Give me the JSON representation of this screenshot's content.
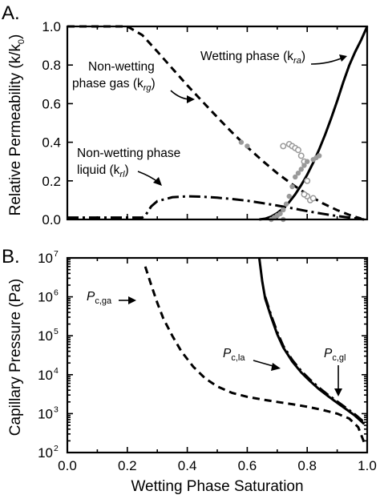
{
  "chart_data": [
    {
      "panel": "A.",
      "type": "line",
      "xlabel": "",
      "ylabel": "Relative Permeability (k/k",
      "ylabel_sub": "0",
      "ylabel_end": ")",
      "xlim": [
        0,
        1
      ],
      "ylim": [
        0,
        1
      ],
      "yticks": [
        "0.0",
        "0.2",
        "0.4",
        "0.6",
        "0.8",
        "1.0"
      ],
      "series": [
        {
          "name": "Wetting phase (k",
          "name_sub": "ra",
          "name_end": ")",
          "style": "solid",
          "x": [
            0.64,
            0.66,
            0.68,
            0.7,
            0.72,
            0.74,
            0.76,
            0.78,
            0.8,
            0.82,
            0.84,
            0.86,
            0.88,
            0.9,
            0.92,
            0.94,
            0.96,
            0.98,
            1.0
          ],
          "y": [
            0.0,
            0.004,
            0.015,
            0.033,
            0.058,
            0.09,
            0.13,
            0.178,
            0.232,
            0.294,
            0.364,
            0.44,
            0.524,
            0.614,
            0.71,
            0.798,
            0.868,
            0.93,
            1.0
          ]
        },
        {
          "name": "Non-wetting phase gas (k",
          "name_sub": "rg",
          "name_end": ")",
          "style": "dashed",
          "x": [
            0.0,
            0.2,
            0.25,
            0.3,
            0.35,
            0.4,
            0.45,
            0.5,
            0.55,
            0.6,
            0.65,
            0.7,
            0.75,
            0.8,
            0.85,
            0.9,
            0.95,
            0.98
          ],
          "y": [
            1.0,
            1.0,
            0.955,
            0.87,
            0.782,
            0.695,
            0.612,
            0.53,
            0.45,
            0.375,
            0.305,
            0.24,
            0.182,
            0.13,
            0.085,
            0.048,
            0.018,
            0.005
          ]
        },
        {
          "name": "Non-wetting phase liquid (k",
          "name_sub": "rl",
          "name_end": ")",
          "style": "dash-dot",
          "x": [
            0.0,
            0.25,
            0.26,
            0.28,
            0.3,
            0.35,
            0.4,
            0.45,
            0.5,
            0.55,
            0.6,
            0.65,
            0.7,
            0.75,
            0.8,
            0.85,
            0.9,
            0.95,
            0.99
          ],
          "y": [
            0.01,
            0.01,
            0.02,
            0.068,
            0.095,
            0.115,
            0.12,
            0.118,
            0.113,
            0.106,
            0.097,
            0.085,
            0.072,
            0.058,
            0.043,
            0.03,
            0.018,
            0.008,
            0.0
          ]
        },
        {
          "style": "points-open",
          "x": [
            0.72,
            0.74,
            0.75,
            0.76,
            0.77,
            0.78,
            0.79,
            0.8,
            0.8,
            0.81,
            0.79,
            0.82
          ],
          "y": [
            0.38,
            0.39,
            0.38,
            0.37,
            0.36,
            0.33,
            0.3,
            0.12,
            0.2,
            0.1,
            0.13,
            0.11
          ]
        },
        {
          "style": "points-filled",
          "x": [
            0.58,
            0.6,
            0.68,
            0.7,
            0.71,
            0.72,
            0.73,
            0.74,
            0.75,
            0.76,
            0.77,
            0.78,
            0.79,
            0.8,
            0.82,
            0.83,
            0.84,
            0.69,
            0.72
          ],
          "y": [
            0.4,
            0.38,
            0.0,
            0.02,
            0.03,
            0.05,
            0.08,
            0.12,
            0.17,
            0.22,
            0.24,
            0.26,
            0.28,
            0.3,
            0.31,
            0.32,
            0.33,
            0.01,
            0.0
          ]
        }
      ]
    },
    {
      "panel": "B.",
      "type": "line",
      "xlabel": "Wetting Phase Saturation",
      "ylabel": "Capillary Pressure (Pa)",
      "ylabel_sub": "",
      "ylabel_end": "",
      "xlim": [
        0,
        1
      ],
      "ylim": [
        100,
        10000000
      ],
      "yscale": "log",
      "xticks": [
        "0.0",
        "0.2",
        "0.4",
        "0.6",
        "0.8",
        "1.0"
      ],
      "yticks_base": "10",
      "yticks_exp": [
        "2",
        "3",
        "4",
        "5",
        "6",
        "7"
      ],
      "series": [
        {
          "name": "P",
          "name_sub": "c,ga",
          "style": "dashed",
          "x": [
            0.26,
            0.28,
            0.3,
            0.32,
            0.35,
            0.38,
            0.42,
            0.46,
            0.5,
            0.55,
            0.6,
            0.65,
            0.7,
            0.75,
            0.8,
            0.85,
            0.9,
            0.94,
            0.97,
            0.99
          ],
          "y": [
            6000000,
            2000000,
            700000,
            280000,
            100000,
            40000,
            16000,
            8000,
            5000,
            3400,
            2700,
            2300,
            2000,
            1750,
            1500,
            1250,
            1000,
            750,
            450,
            180
          ]
        },
        {
          "name": "P",
          "name_sub": "c,la",
          "style": "solid",
          "x": [
            0.64,
            0.65,
            0.66,
            0.68,
            0.7,
            0.72,
            0.75,
            0.78,
            0.81,
            0.84,
            0.87,
            0.9,
            0.93,
            0.96,
            0.99
          ],
          "y": [
            10000000,
            2500000,
            900000,
            300000,
            110000,
            50000,
            22000,
            11500,
            6800,
            4200,
            2800,
            1900,
            1300,
            880,
            540
          ]
        },
        {
          "name": "P",
          "name_sub": "c,gl",
          "style": "dash-dot",
          "x": [
            0.66,
            0.68,
            0.7,
            0.72,
            0.75,
            0.78,
            0.81,
            0.84,
            0.87,
            0.9,
            0.93,
            0.96,
            0.99
          ],
          "y": [
            1000000,
            330000,
            125000,
            55000,
            24000,
            12500,
            7400,
            4600,
            3000,
            2050,
            1400,
            950,
            600
          ]
        }
      ]
    }
  ],
  "annotations": {
    "wetting": {
      "text": "Wetting phase (k",
      "sub": "ra",
      "end": ")"
    },
    "gas_l1": "Non-wetting",
    "gas_l2": {
      "text": "phase gas (k",
      "sub": "rg",
      "end": ")"
    },
    "liq_l1": "Non-wetting phase",
    "liq_l2": {
      "text": "liquid (k",
      "sub": "rl",
      "end": ")"
    },
    "pcga": {
      "text": "P",
      "sub": "c,ga"
    },
    "pcla": {
      "text": "P",
      "sub": "c,la"
    },
    "pcgl": {
      "text": "P",
      "sub": "c,gl"
    }
  },
  "colors": {
    "line": "#000000",
    "points": "#9a9a9a"
  }
}
